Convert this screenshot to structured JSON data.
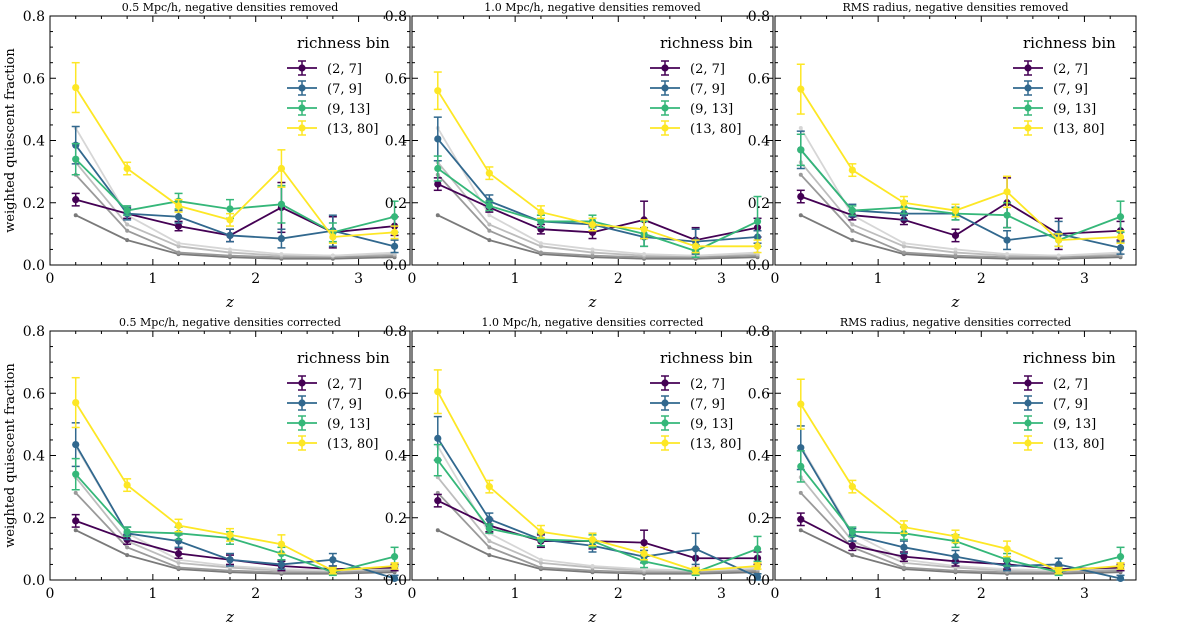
{
  "figure": {
    "ylabel": "weighted quiescent fraction",
    "xlabel": "z",
    "legend_title": "richness bin"
  },
  "chart_data": [
    {
      "type": "line",
      "title": "0.5 Mpc/h, negative densities removed",
      "xlabel": "z",
      "ylabel": "weighted quiescent fraction",
      "xlim": [
        0,
        3.5
      ],
      "ylim": [
        0,
        0.8
      ],
      "xticks": [
        "0",
        "1",
        "2",
        "3"
      ],
      "yticks": [
        "0.0",
        "0.2",
        "0.4",
        "0.6",
        "0.8"
      ],
      "legend": {
        "title": "richness bin",
        "position": "top-right"
      },
      "x": [
        0.25,
        0.75,
        1.25,
        1.75,
        2.25,
        2.75,
        3.35
      ],
      "series": [
        {
          "name": "(2, 7]",
          "color": "#440154",
          "values": [
            0.21,
            0.165,
            0.125,
            0.095,
            0.185,
            0.105,
            0.125
          ],
          "err": [
            0.02,
            0.015,
            0.015,
            0.02,
            0.08,
            0.05,
            0.03
          ]
        },
        {
          "name": "(7, 9]",
          "color": "#31688e",
          "values": [
            0.385,
            0.165,
            0.155,
            0.095,
            0.085,
            0.11,
            0.06
          ],
          "err": [
            0.06,
            0.02,
            0.02,
            0.02,
            0.03,
            0.05,
            0.02
          ]
        },
        {
          "name": "(9, 13]",
          "color": "#35b779",
          "values": [
            0.34,
            0.175,
            0.205,
            0.18,
            0.195,
            0.105,
            0.155
          ],
          "err": [
            0.05,
            0.015,
            0.025,
            0.03,
            0.06,
            0.03,
            0.05
          ]
        },
        {
          "name": "(13, 80]",
          "color": "#fde725",
          "values": [
            0.57,
            0.31,
            0.19,
            0.145,
            0.31,
            0.09,
            0.105
          ],
          "err": [
            0.08,
            0.02,
            0.02,
            0.02,
            0.06,
            0.02,
            0.02
          ]
        }
      ],
      "reference_lines": [
        {
          "color": "#7a7a7a",
          "values": [
            0.16,
            0.08,
            0.035,
            0.025,
            0.02,
            0.02,
            0.025
          ]
        },
        {
          "color": "#9a9a9a",
          "values": [
            0.29,
            0.11,
            0.04,
            0.03,
            0.025,
            0.025,
            0.03
          ]
        },
        {
          "color": "#bdbdbd",
          "values": [
            0.33,
            0.13,
            0.06,
            0.04,
            0.03,
            0.03,
            0.035
          ]
        },
        {
          "color": "#d6d6d6",
          "values": [
            0.44,
            0.16,
            0.07,
            0.05,
            0.035,
            0.03,
            0.04
          ]
        }
      ]
    },
    {
      "type": "line",
      "title": "1.0 Mpc/h, negative densities removed",
      "xlabel": "z",
      "ylabel": "",
      "xlim": [
        0,
        3.5
      ],
      "ylim": [
        0,
        0.8
      ],
      "xticks": [
        "0",
        "1",
        "2",
        "3"
      ],
      "yticks": [
        "0.0",
        "0.2",
        "0.4",
        "0.6",
        "0.8"
      ],
      "legend": {
        "title": "richness bin",
        "position": "top-right"
      },
      "x": [
        0.25,
        0.75,
        1.25,
        1.75,
        2.25,
        2.75,
        3.35
      ],
      "series": [
        {
          "name": "(2, 7]",
          "color": "#440154",
          "values": [
            0.26,
            0.185,
            0.115,
            0.105,
            0.145,
            0.08,
            0.12
          ],
          "err": [
            0.02,
            0.015,
            0.015,
            0.02,
            0.06,
            0.04,
            0.03
          ]
        },
        {
          "name": "(7, 9]",
          "color": "#31688e",
          "values": [
            0.405,
            0.205,
            0.14,
            0.13,
            0.09,
            0.075,
            0.09
          ],
          "err": [
            0.07,
            0.02,
            0.02,
            0.02,
            0.03,
            0.04,
            0.02
          ]
        },
        {
          "name": "(9, 13]",
          "color": "#35b779",
          "values": [
            0.31,
            0.19,
            0.14,
            0.14,
            0.1,
            0.045,
            0.14
          ],
          "err": [
            0.04,
            0.015,
            0.02,
            0.02,
            0.04,
            0.02,
            0.08
          ]
        },
        {
          "name": "(13, 80]",
          "color": "#fde725",
          "values": [
            0.56,
            0.295,
            0.17,
            0.13,
            0.115,
            0.06,
            0.06
          ],
          "err": [
            0.06,
            0.02,
            0.02,
            0.02,
            0.03,
            0.02,
            0.02
          ]
        }
      ],
      "reference_lines": [
        {
          "color": "#7a7a7a",
          "values": [
            0.16,
            0.08,
            0.035,
            0.025,
            0.02,
            0.02,
            0.025
          ]
        },
        {
          "color": "#9a9a9a",
          "values": [
            0.29,
            0.11,
            0.04,
            0.03,
            0.025,
            0.025,
            0.03
          ]
        },
        {
          "color": "#bdbdbd",
          "values": [
            0.33,
            0.13,
            0.06,
            0.04,
            0.03,
            0.03,
            0.035
          ]
        },
        {
          "color": "#d6d6d6",
          "values": [
            0.44,
            0.16,
            0.07,
            0.05,
            0.035,
            0.03,
            0.04
          ]
        }
      ]
    },
    {
      "type": "line",
      "title": "RMS radius, negative densities removed",
      "xlabel": "z",
      "ylabel": "",
      "xlim": [
        0,
        3.5
      ],
      "ylim": [
        0,
        0.8
      ],
      "xticks": [
        "0",
        "1",
        "2",
        "3"
      ],
      "yticks": [
        "0.0",
        "0.2",
        "0.4",
        "0.6",
        "0.8"
      ],
      "legend": {
        "title": "richness bin",
        "position": "top-right"
      },
      "x": [
        0.25,
        0.75,
        1.25,
        1.75,
        2.25,
        2.75,
        3.35
      ],
      "series": [
        {
          "name": "(2, 7]",
          "color": "#440154",
          "values": [
            0.22,
            0.16,
            0.145,
            0.095,
            0.2,
            0.1,
            0.11
          ],
          "err": [
            0.02,
            0.015,
            0.015,
            0.02,
            0.08,
            0.05,
            0.03
          ]
        },
        {
          "name": "(7, 9]",
          "color": "#31688e",
          "values": [
            0.37,
            0.175,
            0.165,
            0.165,
            0.08,
            0.1,
            0.055
          ],
          "err": [
            0.06,
            0.02,
            0.02,
            0.02,
            0.03,
            0.04,
            0.02
          ]
        },
        {
          "name": "(9, 13]",
          "color": "#35b779",
          "values": [
            0.37,
            0.175,
            0.185,
            0.165,
            0.16,
            0.08,
            0.155
          ],
          "err": [
            0.05,
            0.015,
            0.02,
            0.02,
            0.04,
            0.02,
            0.05
          ]
        },
        {
          "name": "(13, 80]",
          "color": "#fde725",
          "values": [
            0.565,
            0.305,
            0.2,
            0.175,
            0.235,
            0.08,
            0.09
          ],
          "err": [
            0.08,
            0.02,
            0.02,
            0.02,
            0.05,
            0.02,
            0.02
          ]
        }
      ],
      "reference_lines": [
        {
          "color": "#7a7a7a",
          "values": [
            0.16,
            0.08,
            0.035,
            0.025,
            0.02,
            0.02,
            0.025
          ]
        },
        {
          "color": "#9a9a9a",
          "values": [
            0.29,
            0.11,
            0.04,
            0.03,
            0.025,
            0.025,
            0.03
          ]
        },
        {
          "color": "#bdbdbd",
          "values": [
            0.33,
            0.13,
            0.06,
            0.04,
            0.03,
            0.03,
            0.035
          ]
        },
        {
          "color": "#d6d6d6",
          "values": [
            0.44,
            0.16,
            0.07,
            0.05,
            0.035,
            0.03,
            0.04
          ]
        }
      ]
    },
    {
      "type": "line",
      "title": "0.5 Mpc/h, negative densities corrected",
      "xlabel": "z",
      "ylabel": "weighted quiescent fraction",
      "xlim": [
        0,
        3.5
      ],
      "ylim": [
        0,
        0.8
      ],
      "xticks": [
        "0",
        "1",
        "2",
        "3"
      ],
      "yticks": [
        "0.0",
        "0.2",
        "0.4",
        "0.6",
        "0.8"
      ],
      "legend": {
        "title": "richness bin",
        "position": "top-right"
      },
      "x": [
        0.25,
        0.75,
        1.25,
        1.75,
        2.25,
        2.75,
        3.35
      ],
      "series": [
        {
          "name": "(2, 7]",
          "color": "#440154",
          "values": [
            0.19,
            0.13,
            0.085,
            0.065,
            0.045,
            0.035,
            0.04
          ],
          "err": [
            0.02,
            0.015,
            0.015,
            0.015,
            0.015,
            0.01,
            0.01
          ]
        },
        {
          "name": "(7, 9]",
          "color": "#31688e",
          "values": [
            0.435,
            0.15,
            0.125,
            0.065,
            0.05,
            0.065,
            0.005
          ],
          "err": [
            0.07,
            0.02,
            0.02,
            0.02,
            0.015,
            0.02,
            0.01
          ]
        },
        {
          "name": "(9, 13]",
          "color": "#35b779",
          "values": [
            0.34,
            0.155,
            0.15,
            0.135,
            0.085,
            0.025,
            0.075
          ],
          "err": [
            0.05,
            0.015,
            0.02,
            0.02,
            0.02,
            0.01,
            0.03
          ]
        },
        {
          "name": "(13, 80]",
          "color": "#fde725",
          "values": [
            0.57,
            0.305,
            0.175,
            0.145,
            0.115,
            0.03,
            0.045
          ],
          "err": [
            0.08,
            0.02,
            0.02,
            0.02,
            0.03,
            0.01,
            0.01
          ]
        }
      ],
      "reference_lines": [
        {
          "color": "#7a7a7a",
          "values": [
            0.16,
            0.08,
            0.035,
            0.025,
            0.02,
            0.02,
            0.025
          ]
        },
        {
          "color": "#9a9a9a",
          "values": [
            0.28,
            0.105,
            0.04,
            0.03,
            0.025,
            0.025,
            0.03
          ]
        },
        {
          "color": "#bdbdbd",
          "values": [
            0.33,
            0.125,
            0.055,
            0.04,
            0.03,
            0.03,
            0.035
          ]
        },
        {
          "color": "#d6d6d6",
          "values": [
            0.43,
            0.15,
            0.065,
            0.045,
            0.035,
            0.03,
            0.04
          ]
        }
      ]
    },
    {
      "type": "line",
      "title": "1.0 Mpc/h, negative densities corrected",
      "xlabel": "z",
      "ylabel": "",
      "xlim": [
        0,
        3.5
      ],
      "ylim": [
        0,
        0.8
      ],
      "xticks": [
        "0",
        "1",
        "2",
        "3"
      ],
      "yticks": [
        "0.0",
        "0.2",
        "0.4",
        "0.6",
        "0.8"
      ],
      "legend": {
        "title": "richness bin",
        "position": "top-right"
      },
      "x": [
        0.25,
        0.75,
        1.25,
        1.75,
        2.25,
        2.75,
        3.35
      ],
      "series": [
        {
          "name": "(2, 7]",
          "color": "#440154",
          "values": [
            0.255,
            0.175,
            0.125,
            0.125,
            0.12,
            0.07,
            0.07
          ],
          "err": [
            0.02,
            0.02,
            0.02,
            0.025,
            0.04,
            0.03,
            0.02
          ]
        },
        {
          "name": "(7, 9]",
          "color": "#31688e",
          "values": [
            0.455,
            0.195,
            0.13,
            0.11,
            0.075,
            0.1,
            0.01
          ],
          "err": [
            0.07,
            0.02,
            0.02,
            0.02,
            0.02,
            0.05,
            0.01
          ]
        },
        {
          "name": "(9, 13]",
          "color": "#35b779",
          "values": [
            0.385,
            0.165,
            0.13,
            0.125,
            0.06,
            0.025,
            0.1
          ],
          "err": [
            0.05,
            0.015,
            0.02,
            0.02,
            0.02,
            0.01,
            0.04
          ]
        },
        {
          "name": "(13, 80]",
          "color": "#fde725",
          "values": [
            0.605,
            0.3,
            0.155,
            0.13,
            0.085,
            0.03,
            0.045
          ],
          "err": [
            0.07,
            0.02,
            0.02,
            0.02,
            0.02,
            0.01,
            0.01
          ]
        }
      ],
      "reference_lines": [
        {
          "color": "#7a7a7a",
          "values": [
            0.16,
            0.08,
            0.035,
            0.025,
            0.02,
            0.02,
            0.025
          ]
        },
        {
          "color": "#9a9a9a",
          "values": [
            0.28,
            0.105,
            0.04,
            0.03,
            0.025,
            0.025,
            0.03
          ]
        },
        {
          "color": "#bdbdbd",
          "values": [
            0.33,
            0.125,
            0.055,
            0.04,
            0.03,
            0.03,
            0.035
          ]
        },
        {
          "color": "#d6d6d6",
          "values": [
            0.43,
            0.15,
            0.065,
            0.045,
            0.035,
            0.03,
            0.04
          ]
        }
      ]
    },
    {
      "type": "line",
      "title": "RMS radius, negative densities corrected",
      "xlabel": "z",
      "ylabel": "",
      "xlim": [
        0,
        3.5
      ],
      "ylim": [
        0,
        0.8
      ],
      "xticks": [
        "0",
        "1",
        "2",
        "3"
      ],
      "yticks": [
        "0.0",
        "0.2",
        "0.4",
        "0.6",
        "0.8"
      ],
      "legend": {
        "title": "richness bin",
        "position": "top-right"
      },
      "x": [
        0.25,
        0.75,
        1.25,
        1.75,
        2.25,
        2.75,
        3.35
      ],
      "series": [
        {
          "name": "(2, 7]",
          "color": "#440154",
          "values": [
            0.195,
            0.11,
            0.075,
            0.06,
            0.05,
            0.035,
            0.04
          ],
          "err": [
            0.02,
            0.015,
            0.015,
            0.015,
            0.015,
            0.01,
            0.01
          ]
        },
        {
          "name": "(7, 9]",
          "color": "#31688e",
          "values": [
            0.425,
            0.145,
            0.105,
            0.075,
            0.045,
            0.05,
            0.005
          ],
          "err": [
            0.07,
            0.02,
            0.02,
            0.02,
            0.015,
            0.02,
            0.01
          ]
        },
        {
          "name": "(9, 13]",
          "color": "#35b779",
          "values": [
            0.365,
            0.155,
            0.15,
            0.125,
            0.065,
            0.025,
            0.075
          ],
          "err": [
            0.05,
            0.015,
            0.02,
            0.02,
            0.02,
            0.01,
            0.03
          ]
        },
        {
          "name": "(13, 80]",
          "color": "#fde725",
          "values": [
            0.565,
            0.3,
            0.17,
            0.14,
            0.1,
            0.03,
            0.045
          ],
          "err": [
            0.08,
            0.02,
            0.02,
            0.02,
            0.025,
            0.01,
            0.01
          ]
        }
      ],
      "reference_lines": [
        {
          "color": "#7a7a7a",
          "values": [
            0.16,
            0.08,
            0.035,
            0.025,
            0.02,
            0.02,
            0.025
          ]
        },
        {
          "color": "#9a9a9a",
          "values": [
            0.28,
            0.105,
            0.04,
            0.03,
            0.025,
            0.025,
            0.03
          ]
        },
        {
          "color": "#bdbdbd",
          "values": [
            0.33,
            0.125,
            0.055,
            0.04,
            0.03,
            0.03,
            0.035
          ]
        },
        {
          "color": "#d6d6d6",
          "values": [
            0.43,
            0.15,
            0.065,
            0.045,
            0.035,
            0.03,
            0.04
          ]
        }
      ]
    }
  ]
}
